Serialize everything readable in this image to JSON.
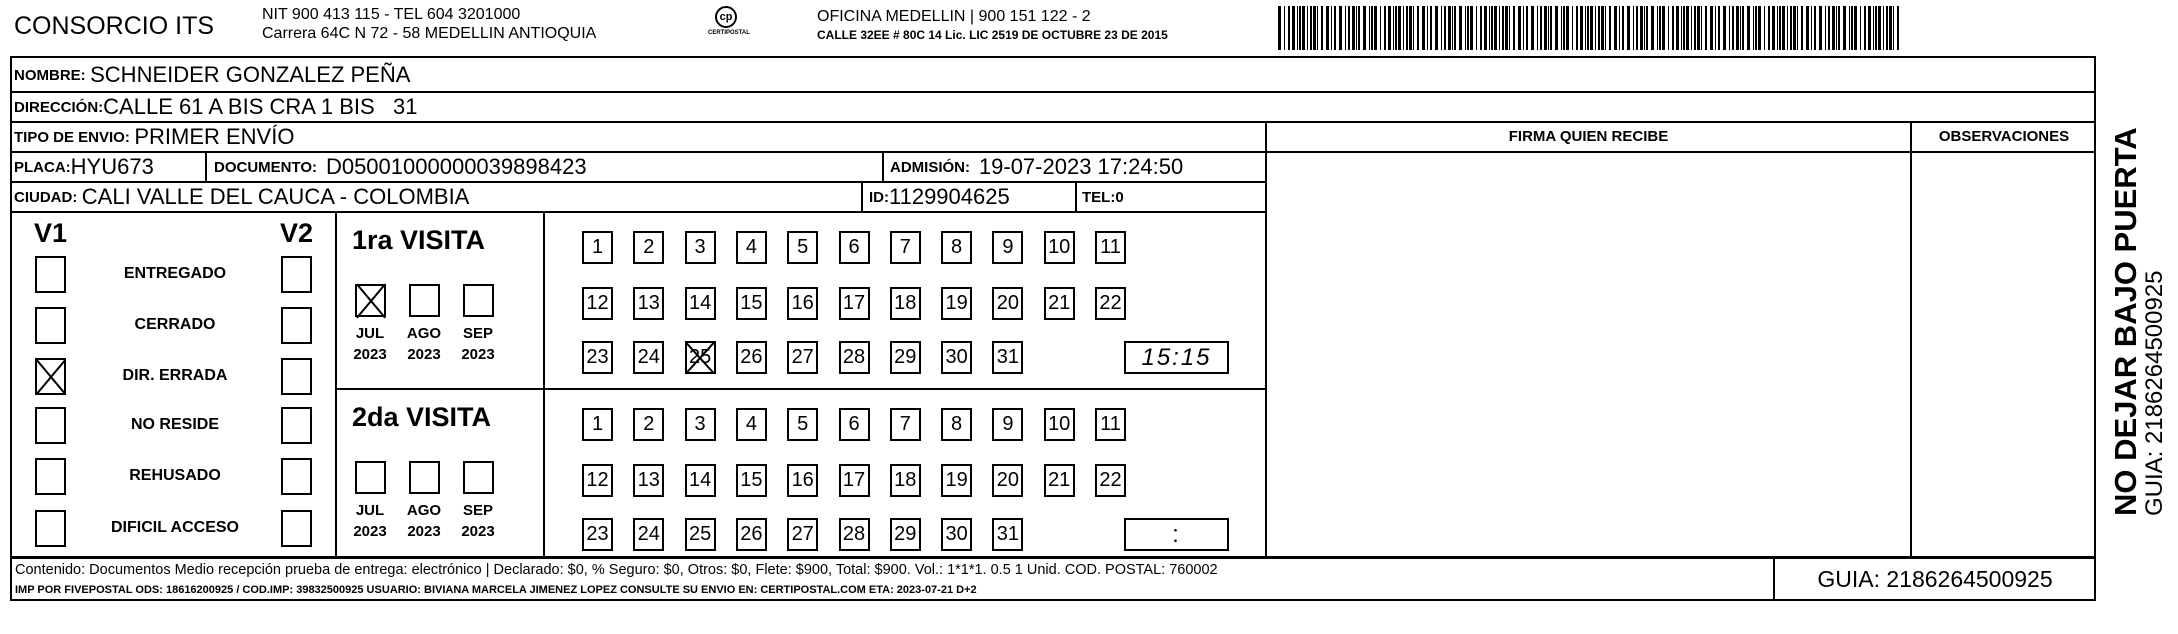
{
  "header": {
    "company": "CONSORCIO ITS",
    "nit_line": "NIT 900 413 115 - TEL 604 3201000",
    "address_line": "Carrera 64C N 72 - 58 MEDELLIN ANTIOQUIA",
    "logo_text": "CERTIPOSTAL",
    "office_line": "OFICINA MEDELLIN | 900 151 122 - 2",
    "office_address": "CALLE 32EE # 80C 14 Lic. LIC 2519 DE OCTUBRE 23 DE 2015"
  },
  "recipient": {
    "nombre_label": "NOMBRE:",
    "nombre": "SCHNEIDER GONZALEZ PEÑA",
    "direccion_label": "DIRECCIÓN:",
    "direccion": "CALLE 61 A BIS CRA 1 BIS   31",
    "tipo_label": "TIPO DE ENVIO:",
    "tipo": "PRIMER ENVÍO",
    "placa_label": "PLACA:",
    "placa": "HYU673",
    "documento_label": "DOCUMENTO:",
    "documento": "D05001000000039898423",
    "admision_label": "ADMISIÓN:",
    "admision": "19-07-2023 17:24:50",
    "ciudad_label": "CIUDAD:",
    "ciudad": "CALI VALLE DEL CAUCA - COLOMBIA",
    "id_label": "ID:",
    "id": "1129904625",
    "tel_label": "TEL:",
    "tel": "0"
  },
  "signature": {
    "firma_label": "FIRMA QUIEN RECIBE",
    "observaciones_label": "OBSERVACIONES"
  },
  "status": {
    "v1_label": "V1",
    "v2_label": "V2",
    "items": [
      {
        "label": "ENTREGADO",
        "v1": false,
        "v2": false
      },
      {
        "label": "CERRADO",
        "v1": false,
        "v2": false
      },
      {
        "label": "DIR. ERRADA",
        "v1": true,
        "v2": false
      },
      {
        "label": "NO RESIDE",
        "v1": false,
        "v2": false
      },
      {
        "label": "REHUSADO",
        "v1": false,
        "v2": false
      },
      {
        "label": "DIFICIL ACCESO",
        "v1": false,
        "v2": false
      }
    ]
  },
  "visits": [
    {
      "title": "1ra VISITA",
      "months": [
        {
          "m": "JUL",
          "y": "2023",
          "checked": true
        },
        {
          "m": "AGO",
          "y": "2023",
          "checked": false
        },
        {
          "m": "SEP",
          "y": "2023",
          "checked": false
        }
      ],
      "marked_day": 25,
      "time": "15:15"
    },
    {
      "title": "2da VISITA",
      "months": [
        {
          "m": "JUL",
          "y": "2023",
          "checked": false
        },
        {
          "m": "AGO",
          "y": "2023",
          "checked": false
        },
        {
          "m": "SEP",
          "y": "2023",
          "checked": false
        }
      ],
      "marked_day": null,
      "time": ":"
    }
  ],
  "footer": {
    "contenido": "Contenido: Documentos Medio recepción prueba de entrega: electrónico | Declarado: $0, % Seguro: $0, Otros: $0, Flete: $900, Total: $900. Vol.: 1*1*1. 0.5  1 Unid. COD. POSTAL: 760002",
    "imp": "IMP POR FIVEPOSTAL ODS: 18616200925 / COD.IMP: 39832500925 USUARIO: BIVIANA MARCELA JIMENEZ LOPEZ CONSULTE SU ENVIO EN: CERTIPOSTAL.COM  ETA: 2023-07-21 D+2",
    "guia": "GUIA: 2186264500925"
  },
  "side": {
    "warning": "NO DEJAR BAJO PUERTA",
    "guia": "GUIA: 2186264500925"
  }
}
